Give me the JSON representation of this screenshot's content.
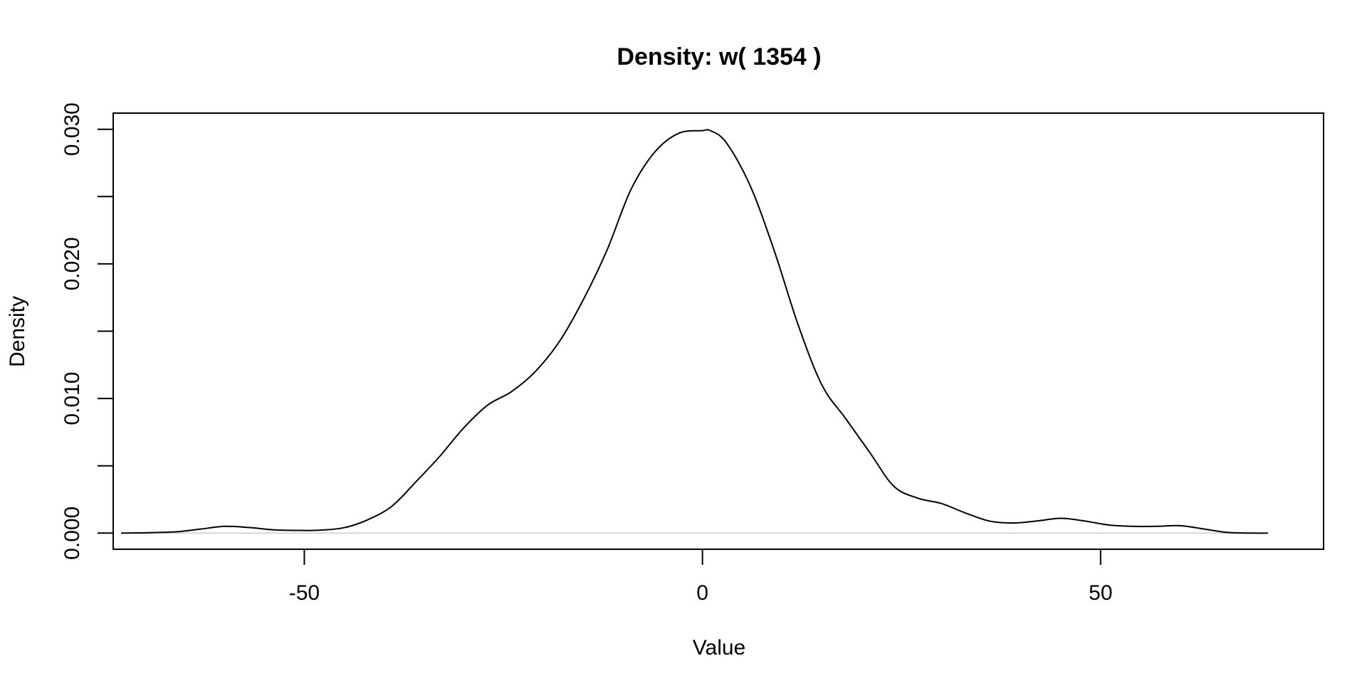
{
  "chart_data": {
    "type": "line",
    "title": "Density: w( 1354 )",
    "xlabel": "Value",
    "ylabel": "Density",
    "xlim": [
      -74,
      78
    ],
    "ylim": [
      -0.0012,
      0.0312
    ],
    "x_ticks": [
      -50,
      0,
      50
    ],
    "x_tick_labels": [
      "-50",
      "0",
      "50"
    ],
    "y_ticks": [
      0.0,
      0.005,
      0.01,
      0.015,
      0.02,
      0.025,
      0.03
    ],
    "y_tick_labels": [
      "0.000",
      "",
      "0.010",
      "",
      "0.020",
      "",
      "0.030"
    ],
    "grid": false,
    "legend": "none",
    "baseline_y": 0,
    "colors": {
      "line": "#000000",
      "baseline": "#cccccc",
      "frame": "#000000"
    },
    "series": [
      {
        "x": [
          -73,
          -70,
          -66,
          -63,
          -60,
          -57,
          -54,
          -51,
          -48,
          -45,
          -42,
          -39,
          -36,
          -33,
          -30,
          -27,
          -24,
          -21,
          -18,
          -15,
          -12,
          -9,
          -6,
          -3,
          0,
          1,
          3,
          6,
          9,
          12,
          15,
          18,
          21,
          24,
          27,
          30,
          33,
          36,
          39,
          42,
          45,
          48,
          51,
          54,
          57,
          60,
          63,
          66,
          69,
          71
        ],
        "y": [
          0.0,
          2e-05,
          0.0001,
          0.0003,
          0.0005,
          0.00042,
          0.00025,
          0.0002,
          0.00022,
          0.0004,
          0.001,
          0.002,
          0.0038,
          0.0057,
          0.0078,
          0.0095,
          0.0105,
          0.012,
          0.0142,
          0.0173,
          0.021,
          0.0255,
          0.0283,
          0.0297,
          0.0299,
          0.0299,
          0.029,
          0.0258,
          0.021,
          0.0155,
          0.011,
          0.0085,
          0.006,
          0.0035,
          0.0026,
          0.0022,
          0.0015,
          0.0009,
          0.00075,
          0.0009,
          0.0011,
          0.0009,
          0.0006,
          0.0005,
          0.0005,
          0.00055,
          0.0003,
          5e-05,
          0.0,
          0.0
        ]
      }
    ]
  }
}
